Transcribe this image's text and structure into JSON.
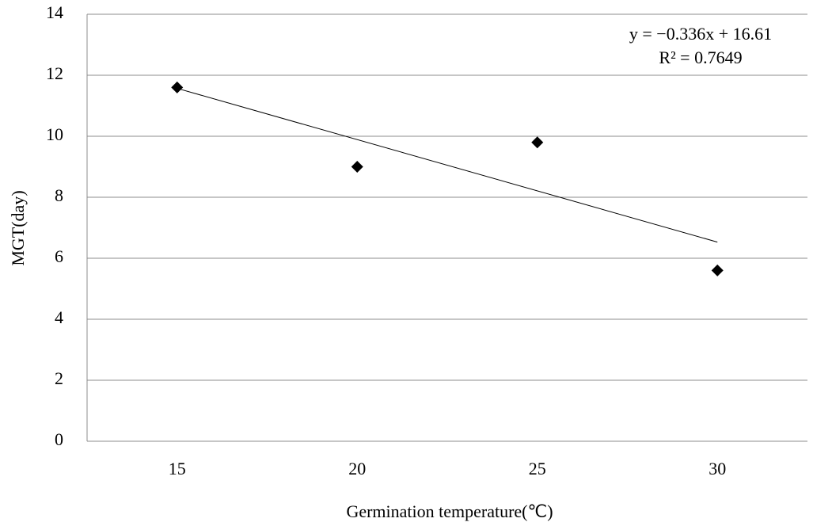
{
  "chart_data": {
    "type": "scatter",
    "x": [
      15,
      20,
      25,
      30
    ],
    "values": [
      11.6,
      9.0,
      9.8,
      5.6
    ],
    "color": "#000000",
    "xlim": [
      12.5,
      32.5
    ],
    "xticks": [
      15,
      20,
      25,
      30
    ],
    "ylim": [
      0,
      14
    ],
    "yticks": [
      0,
      2,
      4,
      6,
      8,
      10,
      12,
      14
    ],
    "grid": true,
    "x_label": "Germination temperature(℃)",
    "y_label": "MGT(day)",
    "trendline": {
      "slope": -0.336,
      "intercept": 16.61,
      "equation": "y = −0.336x + 16.61",
      "r2_label": "R²  = 0.7649"
    }
  }
}
